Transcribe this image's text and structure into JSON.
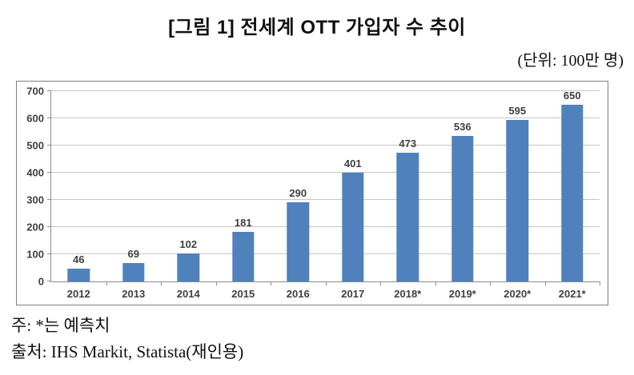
{
  "title": "[그림 1] 전세계 OTT 가입자 수 추이",
  "unit_label": "(단위: 100만 명)",
  "notes": {
    "note": "주: *는 예측치",
    "source": "출처: IHS Markit, Statista(재인용)"
  },
  "colors": {
    "bar": "#4F81BD",
    "gridline": "#C6C6C6",
    "axis": "#8C8C8C",
    "frame_border": "#7F7F7F",
    "label_text": "#3F3F3F"
  },
  "chart_data": {
    "type": "bar",
    "title": "[그림 1] 전세계 OTT 가입자 수 추이",
    "unit": "100만 명",
    "categories": [
      "2012",
      "2013",
      "2014",
      "2015",
      "2016",
      "2017",
      "2018*",
      "2019*",
      "2020*",
      "2021*"
    ],
    "values": [
      46,
      69,
      102,
      181,
      290,
      401,
      473,
      536,
      595,
      650
    ],
    "xlabel": "",
    "ylabel": "",
    "ylim": [
      0,
      700
    ],
    "ytick_step": 100,
    "yticks": [
      0,
      100,
      200,
      300,
      400,
      500,
      600,
      700
    ],
    "grid": true,
    "legend_position": "none",
    "data_labels": true,
    "annotation": "* marks forecast values (예측치)"
  }
}
